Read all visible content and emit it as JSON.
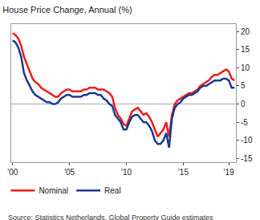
{
  "chart_data": {
    "type": "line",
    "title": "House Price Change, Annual (%)",
    "annotations": [
      "Source: Statistics Netherlands, Global Property Guide estimates"
    ],
    "categories": [
      "'00",
      null,
      null,
      null,
      null,
      null,
      null,
      null,
      null,
      null,
      null,
      null,
      null,
      null,
      null,
      null,
      null,
      null,
      null,
      null,
      "'05",
      null,
      null,
      null,
      null,
      null,
      null,
      null,
      null,
      null,
      null,
      null,
      null,
      null,
      null,
      null,
      null,
      null,
      null,
      null,
      "'10",
      null,
      null,
      null,
      null,
      null,
      null,
      null,
      null,
      null,
      null,
      null,
      null,
      null,
      null,
      null,
      null,
      null,
      null,
      null,
      "'15",
      null,
      null,
      null,
      null,
      null,
      null,
      null,
      null,
      null,
      null,
      null,
      null,
      null,
      null,
      null,
      "'19",
      null,
      null
    ],
    "series": [
      {
        "name": "Nominal",
        "color": "#ee1c1c",
        "values": [
          19.5,
          19,
          18,
          16,
          13,
          11,
          9,
          7,
          6,
          5.5,
          4.5,
          4,
          3.5,
          3,
          2.5,
          2,
          2,
          3,
          3.5,
          4,
          4,
          3.5,
          3.5,
          3.5,
          3.5,
          4,
          4,
          4.5,
          4.5,
          4.5,
          4,
          4,
          4,
          3.5,
          3,
          2,
          -1,
          -3,
          -4,
          -5.5,
          -6,
          -4,
          -2,
          -1.5,
          -1,
          -2,
          -3,
          -2.5,
          -3.5,
          -5,
          -7,
          -9,
          -8,
          -7,
          -5,
          -9,
          -3,
          0,
          1,
          1.5,
          2,
          2.5,
          3,
          3,
          3.5,
          4,
          5,
          5.5,
          6,
          6.5,
          7.5,
          8,
          8,
          8.5,
          9,
          9.5,
          9,
          7,
          6.5
        ]
      },
      {
        "name": "Real",
        "color": "#1a3a8f",
        "values": [
          17.5,
          17,
          15.5,
          13,
          8.5,
          6.5,
          5,
          3.5,
          2.5,
          2,
          1.5,
          1,
          0.5,
          0.5,
          0,
          0,
          0.5,
          1.5,
          2,
          2.5,
          2.5,
          2,
          2,
          2,
          2,
          2.5,
          2.5,
          3,
          3,
          3,
          2.5,
          2.5,
          1.5,
          1,
          0,
          -0.5,
          -3,
          -4,
          -5,
          -7,
          -7,
          -5,
          -3.5,
          -3,
          -3,
          -4,
          -5,
          -5,
          -6,
          -7.5,
          -10,
          -11,
          -11,
          -10,
          -8,
          -12,
          -4,
          -1,
          0,
          0.5,
          1.5,
          2,
          2.5,
          2.5,
          3,
          3.5,
          4.5,
          5,
          5,
          5.5,
          6,
          6.5,
          6.5,
          6.5,
          7,
          7,
          6.5,
          4.5,
          4.5
        ]
      }
    ],
    "ylim": [
      -16,
      22
    ],
    "yticks": [
      -15,
      -10,
      -5,
      0,
      5,
      10,
      15,
      20
    ],
    "grid": false,
    "legend": "bottom left"
  }
}
